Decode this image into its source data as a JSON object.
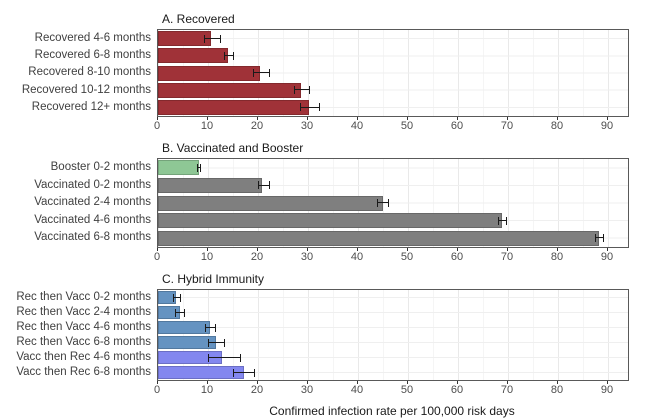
{
  "figure": {
    "background": "#ffffff",
    "xlabel": "Confirmed infection rate per 100,000 risk days"
  },
  "axis": {
    "xlim": [
      0,
      94
    ],
    "xticks": [
      0,
      10,
      20,
      30,
      40,
      50,
      60,
      70,
      80,
      90
    ]
  },
  "colors": {
    "recovered_red": "#A03238",
    "booster_green": "#8EC795",
    "vaccinated_gray": "#7F7F7F",
    "rec_then_vacc_blue": "#6593C1",
    "vacc_then_rec_periwinkle": "#8387EF",
    "error_bar": "#1a1a1a",
    "panel_border": "#595959",
    "grid_major": "#e9e9e9",
    "grid_minor": "#f5f5f5",
    "grid_row": "#efefef"
  },
  "chart_data": [
    {
      "type": "bar",
      "orientation": "horizontal",
      "title": "A. Recovered",
      "categories": [
        "Recovered 4-6 months",
        "Recovered 6-8 months",
        "Recovered 8-10 months",
        "Recovered 10-12 months",
        "Recovered 12+ months"
      ],
      "values": [
        10.5,
        14.0,
        20.3,
        28.5,
        30.2
      ],
      "ci_low": [
        9.2,
        13.2,
        18.9,
        27.2,
        28.4
      ],
      "ci_high": [
        12.6,
        15.1,
        22.3,
        30.4,
        32.3
      ],
      "bar_colors": [
        "#A03238",
        "#A03238",
        "#A03238",
        "#A03238",
        "#A03238"
      ],
      "xlim": [
        0,
        94
      ],
      "xticks": [
        0,
        10,
        20,
        30,
        40,
        50,
        60,
        70,
        80,
        90
      ],
      "grid": true,
      "legend": false,
      "xlabel": ""
    },
    {
      "type": "bar",
      "orientation": "horizontal",
      "title": "B. Vaccinated and Booster",
      "categories": [
        "Booster 0-2 months",
        "Vaccinated 0-2 months",
        "Vaccinated 2-4 months",
        "Vaccinated 4-6 months",
        "Vaccinated 6-8 months"
      ],
      "values": [
        8.1,
        20.8,
        44.9,
        68.8,
        88.2
      ],
      "ci_low": [
        7.7,
        19.9,
        43.8,
        68.0,
        87.3
      ],
      "ci_high": [
        8.6,
        22.4,
        46.2,
        69.7,
        89.1
      ],
      "bar_colors": [
        "#8EC795",
        "#7F7F7F",
        "#7F7F7F",
        "#7F7F7F",
        "#7F7F7F"
      ],
      "xlim": [
        0,
        94
      ],
      "xticks": [
        0,
        10,
        20,
        30,
        40,
        50,
        60,
        70,
        80,
        90
      ],
      "grid": true,
      "legend": false,
      "xlabel": ""
    },
    {
      "type": "bar",
      "orientation": "horizontal",
      "title": "C. Hybrid Immunity",
      "categories": [
        "Rec then Vacc 0-2 months",
        "Rec then Vacc 2-4 months",
        "Rec then Vacc 4-6 months",
        "Rec then Vacc 6-8 months",
        "Vacc then Rec 4-6 months",
        "Vacc then Rec 6-8 months"
      ],
      "values": [
        3.5,
        4.3,
        10.3,
        11.5,
        12.8,
        17.1
      ],
      "ci_low": [
        2.9,
        3.4,
        9.3,
        10.0,
        10.0,
        14.9
      ],
      "ci_high": [
        4.5,
        5.4,
        11.6,
        13.4,
        16.6,
        19.3
      ],
      "bar_colors": [
        "#6593C1",
        "#6593C1",
        "#6593C1",
        "#6593C1",
        "#8387EF",
        "#8387EF"
      ],
      "xlim": [
        0,
        94
      ],
      "xticks": [
        0,
        10,
        20,
        30,
        40,
        50,
        60,
        70,
        80,
        90
      ],
      "grid": true,
      "legend": false,
      "xlabel": "Confirmed infection rate per 100,000 risk days"
    }
  ]
}
